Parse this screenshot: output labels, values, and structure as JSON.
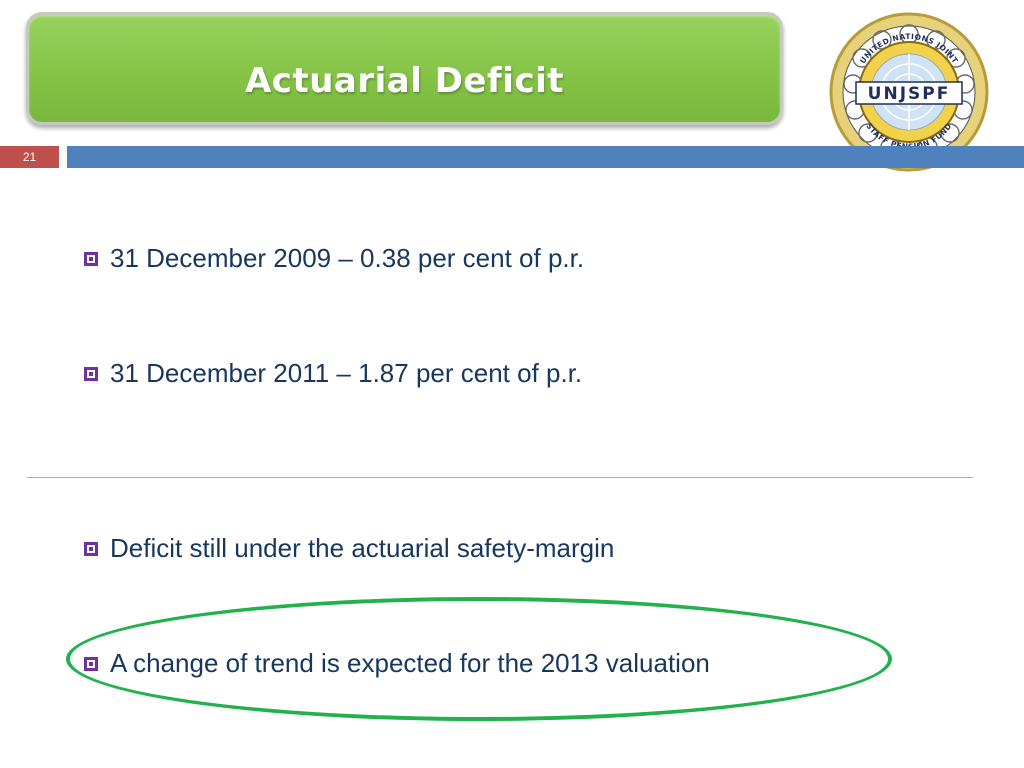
{
  "slide": {
    "title": "Actuarial Deficit",
    "number": "21",
    "logo": {
      "top_text": "UNITED NATIONS JOINT",
      "center_text": "UNJSPF",
      "bottom_text": "STAFF PENSION FUND"
    }
  },
  "bullets": [
    {
      "text": "31 December 2009 – 0.38 per cent of p.r."
    },
    {
      "text": "31 December 2011 – 1.87 per cent of p.r."
    },
    {
      "text": "Deficit still under the actuarial safety-margin"
    },
    {
      "text": "A change of trend is expected for the 2013 valuation"
    }
  ],
  "colors": {
    "title_green": "#86c448",
    "number_red": "#c0504d",
    "bar_blue": "#4f81bd",
    "bullet_purple": "#7030a0",
    "text_navy": "#17375e",
    "highlight_green": "#22b14c"
  }
}
